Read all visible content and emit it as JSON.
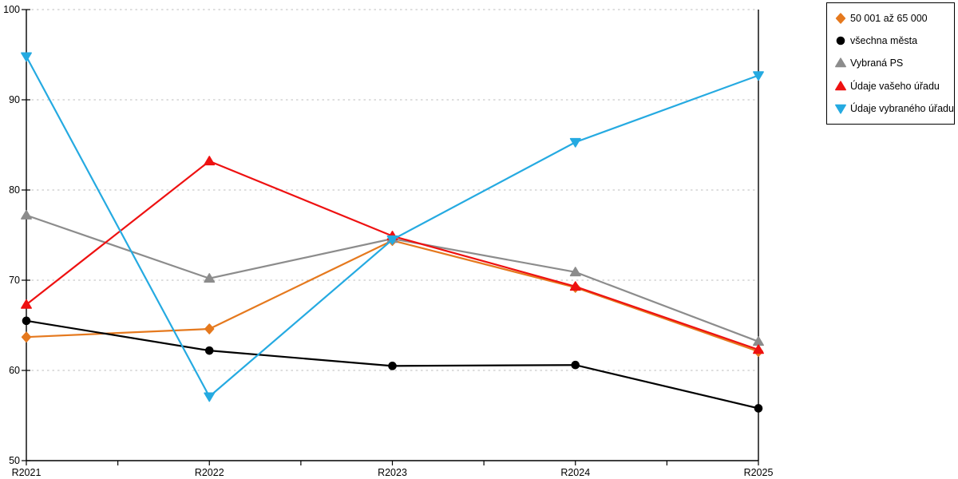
{
  "chart_data": {
    "type": "line",
    "title": "",
    "xlabel": "",
    "ylabel": "",
    "x_categories": [
      "R2021",
      "R2022",
      "R2023",
      "R2024",
      "R2025"
    ],
    "ylim": [
      50,
      100
    ],
    "yticks": [
      50,
      60,
      70,
      80,
      90,
      100
    ],
    "grid": "horizontal-dashed",
    "legend_position": "outside-top-right",
    "colors": {
      "background": "#FFFFFF",
      "axis": "#000000",
      "grid": "#C9C9C9",
      "legend_border": "#000000",
      "text": "#000000"
    },
    "series": [
      {
        "name": "50 001 až 65 000",
        "marker": "diamond",
        "color": "#E5791E",
        "values": [
          63.7,
          64.6,
          74.4,
          69.2,
          62.1
        ]
      },
      {
        "name": "všechna města",
        "marker": "circle",
        "color": "#000000",
        "values": [
          65.5,
          62.2,
          60.5,
          60.6,
          55.8
        ]
      },
      {
        "name": "Vybraná PS",
        "marker": "triangle-up",
        "color": "#8C8C8C",
        "values": [
          77.2,
          70.2,
          74.6,
          70.9,
          63.2
        ]
      },
      {
        "name": "Údaje vašeho úřadu",
        "marker": "triangle-up",
        "color": "#EE1111",
        "values": [
          67.3,
          83.2,
          74.9,
          69.3,
          62.3
        ]
      },
      {
        "name": "Údaje vybraného úřadu",
        "marker": "triangle-down",
        "color": "#25AAE1",
        "values": [
          94.8,
          57.1,
          74.5,
          85.3,
          92.7
        ]
      }
    ]
  }
}
